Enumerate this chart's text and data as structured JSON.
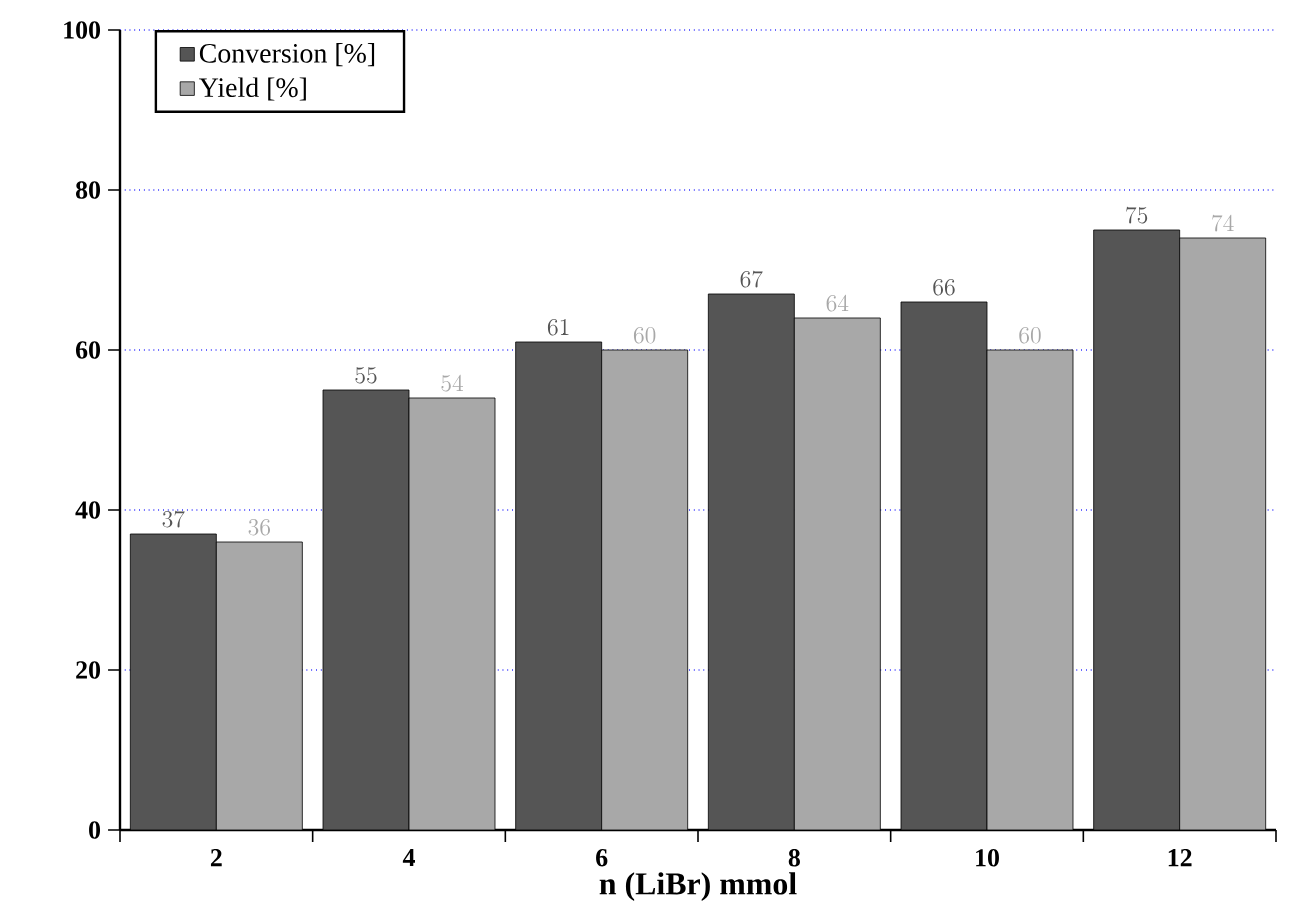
{
  "chart_data": {
    "type": "bar",
    "xlabel": "n (LiBr) mmol",
    "categories": [
      "2",
      "4",
      "6",
      "8",
      "10",
      "12"
    ],
    "series": [
      {
        "name": "Conversion [%]",
        "color": "#555555",
        "values": [
          37,
          55,
          61,
          67,
          66,
          75
        ]
      },
      {
        "name": "Yield [%]",
        "color": "#a8a8a8",
        "values": [
          36,
          54,
          60,
          64,
          60,
          74
        ]
      }
    ],
    "ylim": [
      0,
      100
    ],
    "yticks": [
      0,
      20,
      40,
      60,
      80,
      100
    ],
    "grid": "y",
    "legend": "top left",
    "data_labels": true
  }
}
